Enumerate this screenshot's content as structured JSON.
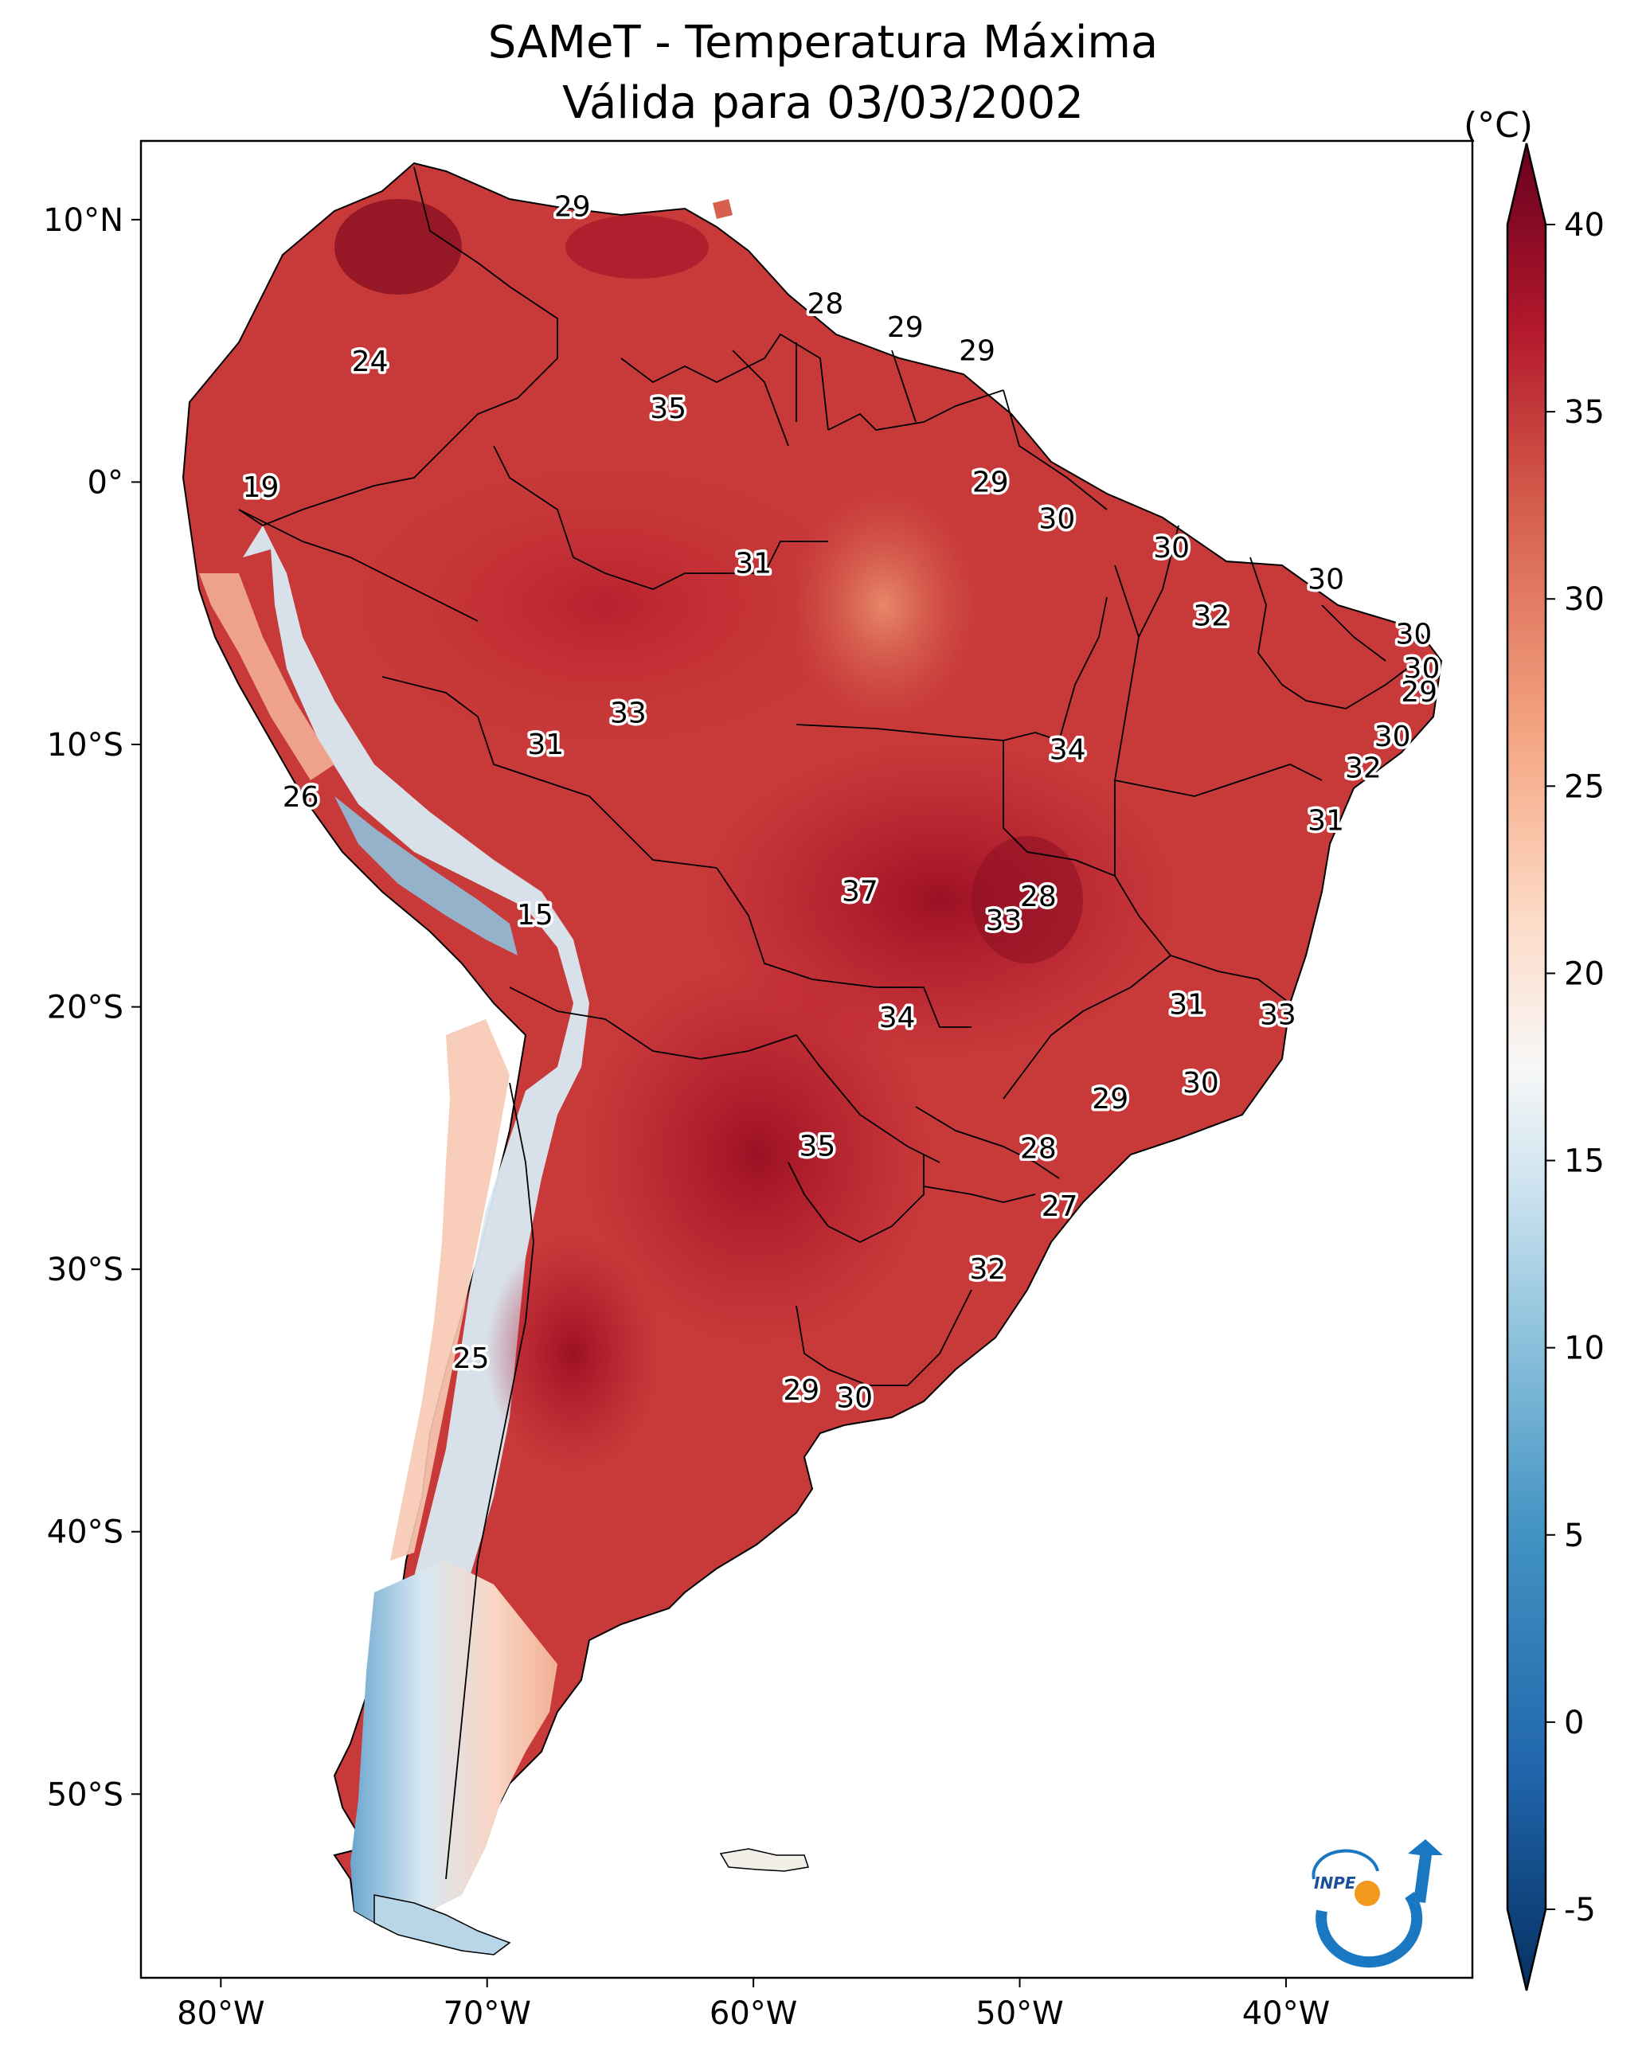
{
  "title": {
    "line1": "SAMeT - Temperatura Máxima",
    "line2": "Válida para 03/03/2002"
  },
  "map": {
    "projection": "PlateCarree",
    "lon_range": [
      -83,
      -33
    ],
    "lat_range": [
      -57,
      13
    ],
    "lon_ticks": [
      {
        "value": -80,
        "label": "80°W"
      },
      {
        "value": -70,
        "label": "70°W"
      },
      {
        "value": -60,
        "label": "60°W"
      },
      {
        "value": -50,
        "label": "50°W"
      },
      {
        "value": -40,
        "label": "40°W"
      }
    ],
    "lat_ticks": [
      {
        "value": 10,
        "label": "10°N"
      },
      {
        "value": 0,
        "label": "0°"
      },
      {
        "value": -10,
        "label": "10°S"
      },
      {
        "value": -20,
        "label": "20°S"
      },
      {
        "value": -30,
        "label": "30°S"
      },
      {
        "value": -40,
        "label": "40°S"
      },
      {
        "value": -50,
        "label": "50°S"
      }
    ],
    "city_values": [
      {
        "lon": -66.8,
        "lat": 10.5,
        "text": "29"
      },
      {
        "lon": -57.3,
        "lat": 6.8,
        "text": "28"
      },
      {
        "lon": -54.3,
        "lat": 5.9,
        "text": "29"
      },
      {
        "lon": -51.6,
        "lat": 5.0,
        "text": "29"
      },
      {
        "lon": -74.4,
        "lat": 4.6,
        "text": "24"
      },
      {
        "lon": -63.2,
        "lat": 2.8,
        "text": "35"
      },
      {
        "lon": -51.1,
        "lat": 0.0,
        "text": "29"
      },
      {
        "lon": -78.5,
        "lat": -0.2,
        "text": "19"
      },
      {
        "lon": -48.6,
        "lat": -1.4,
        "text": "30"
      },
      {
        "lon": -44.3,
        "lat": -2.5,
        "text": "30"
      },
      {
        "lon": -60.0,
        "lat": -3.1,
        "text": "31"
      },
      {
        "lon": -38.5,
        "lat": -3.7,
        "text": "30"
      },
      {
        "lon": -42.8,
        "lat": -5.1,
        "text": "32"
      },
      {
        "lon": -35.2,
        "lat": -5.8,
        "text": "30"
      },
      {
        "lon": -34.9,
        "lat": -7.1,
        "text": "30"
      },
      {
        "lon": -35.0,
        "lat": -8.0,
        "text": "29"
      },
      {
        "lon": -64.7,
        "lat": -8.8,
        "text": "33"
      },
      {
        "lon": -36.0,
        "lat": -9.7,
        "text": "30"
      },
      {
        "lon": -67.8,
        "lat": -10.0,
        "text": "31"
      },
      {
        "lon": -48.2,
        "lat": -10.2,
        "text": "34"
      },
      {
        "lon": -37.1,
        "lat": -10.9,
        "text": "32"
      },
      {
        "lon": -77.0,
        "lat": -12.0,
        "text": "26"
      },
      {
        "lon": -38.5,
        "lat": -12.9,
        "text": "31"
      },
      {
        "lon": -49.3,
        "lat": -15.8,
        "text": "28"
      },
      {
        "lon": -56.0,
        "lat": -15.6,
        "text": "37"
      },
      {
        "lon": -68.2,
        "lat": -16.5,
        "text": "15"
      },
      {
        "lon": -50.6,
        "lat": -16.7,
        "text": "33"
      },
      {
        "lon": -43.7,
        "lat": -19.9,
        "text": "31"
      },
      {
        "lon": -40.3,
        "lat": -20.3,
        "text": "33"
      },
      {
        "lon": -54.6,
        "lat": -20.4,
        "text": "34"
      },
      {
        "lon": -43.2,
        "lat": -22.9,
        "text": "30"
      },
      {
        "lon": -46.6,
        "lat": -23.5,
        "text": "29"
      },
      {
        "lon": -57.6,
        "lat": -25.3,
        "text": "35"
      },
      {
        "lon": -49.3,
        "lat": -25.4,
        "text": "28"
      },
      {
        "lon": -48.5,
        "lat": -27.6,
        "text": "27"
      },
      {
        "lon": -51.2,
        "lat": -30.0,
        "text": "32"
      },
      {
        "lon": -70.6,
        "lat": -33.4,
        "text": "25"
      },
      {
        "lon": -58.2,
        "lat": -34.6,
        "text": "29"
      },
      {
        "lon": -56.2,
        "lat": -34.9,
        "text": "30"
      }
    ]
  },
  "colorbar": {
    "unit": "(°C)",
    "range": [
      -5,
      40
    ],
    "ticks": [
      "-5",
      "0",
      "5",
      "10",
      "15",
      "20",
      "25",
      "30",
      "35",
      "40"
    ],
    "colors": [
      "#053061",
      "#2166ac",
      "#4393c3",
      "#92c5de",
      "#d1e5f0",
      "#f7f7f7",
      "#fddbc7",
      "#f4a582",
      "#d6604d",
      "#b2182b",
      "#67001f"
    ],
    "extend": "both"
  },
  "logo": {
    "text": "INPE"
  }
}
